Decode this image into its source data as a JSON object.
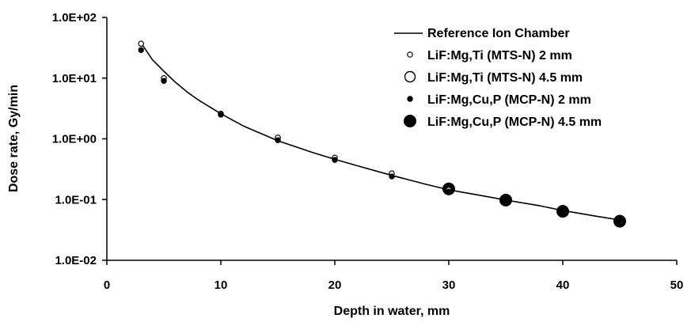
{
  "chart_data": {
    "type": "scatter",
    "xlabel": "Depth in water, mm",
    "ylabel": "Dose rate, Gy/min",
    "xlim": [
      0,
      50
    ],
    "ylim": [
      0.01,
      100
    ],
    "yscale": "log",
    "grid": false,
    "legend_position": "top-right",
    "x_ticks": [
      0,
      10,
      20,
      30,
      40,
      50
    ],
    "x_tick_labels": [
      "0",
      "10",
      "20",
      "30",
      "40",
      "50"
    ],
    "y_ticks": [
      100,
      10,
      1,
      0.1,
      0.01
    ],
    "y_tick_labels": [
      "1.0E+02",
      "1.0E+01",
      "1.0E+00",
      "1.0E-01",
      "1.0E-02"
    ],
    "series": [
      {
        "name": "Reference Ion Chamber",
        "style": "line",
        "color": "#000000",
        "x": [
          3,
          4,
          5,
          6,
          7,
          8,
          10,
          12,
          15,
          18,
          20,
          22,
          25,
          28,
          30,
          33,
          35,
          38,
          40,
          43,
          45
        ],
        "y": [
          38,
          20,
          13,
          8.6,
          6.0,
          4.4,
          2.6,
          1.62,
          0.93,
          0.6,
          0.46,
          0.36,
          0.25,
          0.178,
          0.145,
          0.115,
          0.098,
          0.079,
          0.066,
          0.053,
          0.046
        ]
      },
      {
        "name": "LiF:Mg,Ti (MTS-N) 2 mm",
        "style": "marker",
        "marker": "open-small",
        "x": [
          3,
          5,
          10,
          15,
          20,
          25,
          30
        ],
        "y": [
          37,
          10,
          2.6,
          1.05,
          0.49,
          0.27,
          0.145
        ]
      },
      {
        "name": "LiF:Mg,Ti (MTS-N) 4.5 mm",
        "style": "marker",
        "marker": "open-large",
        "x": [
          30,
          35,
          40,
          45
        ],
        "y": [
          0.15,
          0.098,
          0.065,
          0.045
        ]
      },
      {
        "name": "LiF:Mg,Cu,P (MCP-N) 2 mm",
        "style": "marker",
        "marker": "filled-small",
        "x": [
          3,
          5,
          10,
          15,
          20,
          25,
          30
        ],
        "y": [
          29,
          9,
          2.5,
          0.95,
          0.45,
          0.24,
          0.135
        ]
      },
      {
        "name": "LiF:Mg,Cu,P (MCP-N) 4.5 mm",
        "style": "marker",
        "marker": "filled-large",
        "x": [
          30,
          35,
          40,
          45
        ],
        "y": [
          0.15,
          0.098,
          0.064,
          0.044
        ]
      }
    ]
  }
}
